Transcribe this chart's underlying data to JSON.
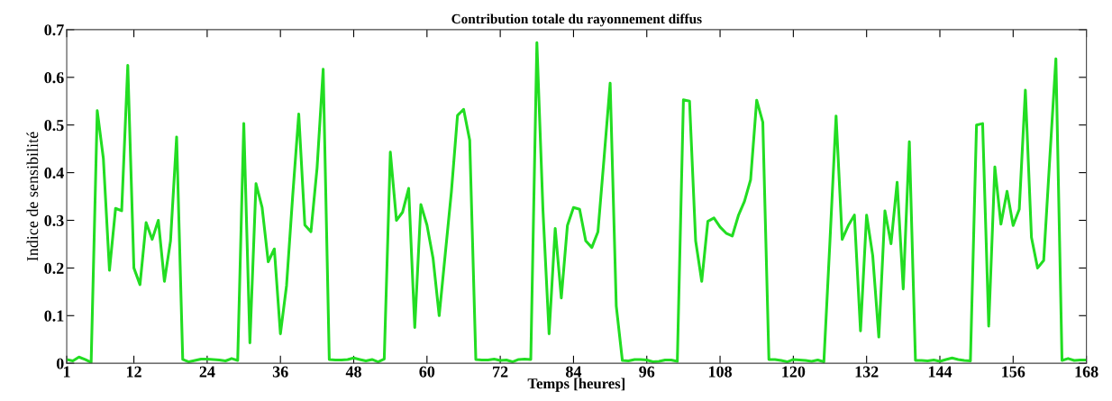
{
  "chart_data": {
    "type": "line",
    "title": "Contribution totale du rayonnement diffus",
    "xlabel": "Temps [heures]",
    "ylabel": "Indice de sensibilité",
    "x": [
      1,
      2,
      3,
      4,
      5,
      6,
      7,
      8,
      9,
      10,
      11,
      12,
      13,
      14,
      15,
      16,
      17,
      18,
      19,
      20,
      21,
      22,
      23,
      24,
      25,
      26,
      27,
      28,
      29,
      30,
      31,
      32,
      33,
      34,
      35,
      36,
      37,
      38,
      39,
      40,
      41,
      42,
      43,
      44,
      45,
      46,
      47,
      48,
      49,
      50,
      51,
      52,
      53,
      54,
      55,
      56,
      57,
      58,
      59,
      60,
      61,
      62,
      63,
      64,
      65,
      66,
      67,
      68,
      69,
      70,
      71,
      72,
      73,
      74,
      75,
      76,
      77,
      78,
      79,
      80,
      81,
      82,
      83,
      84,
      85,
      86,
      87,
      88,
      89,
      90,
      91,
      92,
      93,
      94,
      95,
      96,
      97,
      98,
      99,
      100,
      101,
      102,
      103,
      104,
      105,
      106,
      107,
      108,
      109,
      110,
      111,
      112,
      113,
      114,
      115,
      116,
      117,
      118,
      119,
      120,
      121,
      122,
      123,
      124,
      125,
      126,
      127,
      128,
      129,
      130,
      131,
      132,
      133,
      134,
      135,
      136,
      137,
      138,
      139,
      140,
      141,
      142,
      143,
      144,
      145,
      146,
      147,
      148,
      149,
      150,
      151,
      152,
      153,
      154,
      155,
      156,
      157,
      158,
      159,
      160,
      161,
      162,
      163,
      164,
      165,
      166,
      167,
      168
    ],
    "series": [
      {
        "color": "#22dd22",
        "values": [
          0.008,
          0.005,
          0.013,
          0.008,
          0.002,
          0.53,
          0.43,
          0.195,
          0.325,
          0.32,
          0.625,
          0.2,
          0.165,
          0.295,
          0.26,
          0.3,
          0.172,
          0.257,
          0.475,
          0.008,
          0.003,
          0.006,
          0.009,
          0.009,
          0.008,
          0.007,
          0.005,
          0.01,
          0.006,
          0.503,
          0.043,
          0.377,
          0.327,
          0.213,
          0.24,
          0.062,
          0.163,
          0.35,
          0.523,
          0.29,
          0.276,
          0.41,
          0.617,
          0.008,
          0.007,
          0.007,
          0.008,
          0.011,
          0.008,
          0.005,
          0.008,
          0.003,
          0.009,
          0.443,
          0.3,
          0.317,
          0.367,
          0.075,
          0.333,
          0.29,
          0.22,
          0.1,
          0.23,
          0.36,
          0.52,
          0.533,
          0.468,
          0.008,
          0.007,
          0.007,
          0.009,
          0.006,
          0.007,
          0.003,
          0.008,
          0.009,
          0.008,
          0.673,
          0.32,
          0.062,
          0.283,
          0.137,
          0.289,
          0.327,
          0.323,
          0.257,
          0.243,
          0.276,
          0.43,
          0.588,
          0.12,
          0.006,
          0.005,
          0.008,
          0.008,
          0.007,
          0.003,
          0.004,
          0.007,
          0.007,
          0.004,
          0.553,
          0.55,
          0.257,
          0.172,
          0.298,
          0.305,
          0.286,
          0.273,
          0.267,
          0.31,
          0.34,
          0.385,
          0.552,
          0.506,
          0.008,
          0.008,
          0.006,
          0.003,
          0.008,
          0.007,
          0.006,
          0.004,
          0.007,
          0.003,
          0.257,
          0.519,
          0.26,
          0.289,
          0.311,
          0.068,
          0.311,
          0.226,
          0.055,
          0.32,
          0.251,
          0.38,
          0.156,
          0.465,
          0.006,
          0.006,
          0.005,
          0.007,
          0.004,
          0.008,
          0.011,
          0.008,
          0.006,
          0.005,
          0.5,
          0.503,
          0.078,
          0.412,
          0.292,
          0.361,
          0.289,
          0.323,
          0.573,
          0.264,
          0.2,
          0.216,
          0.43,
          0.639,
          0.006,
          0.01,
          0.006,
          0.007,
          0.007
        ]
      }
    ],
    "xlim": [
      1,
      168
    ],
    "xticks": [
      1,
      12,
      24,
      36,
      48,
      60,
      72,
      84,
      96,
      108,
      120,
      132,
      144,
      156,
      168
    ],
    "ylim": [
      0,
      0.7
    ],
    "yticks": [
      0,
      0.1,
      0.2,
      0.3,
      0.4,
      0.5,
      0.6,
      0.7
    ],
    "grid": false
  }
}
